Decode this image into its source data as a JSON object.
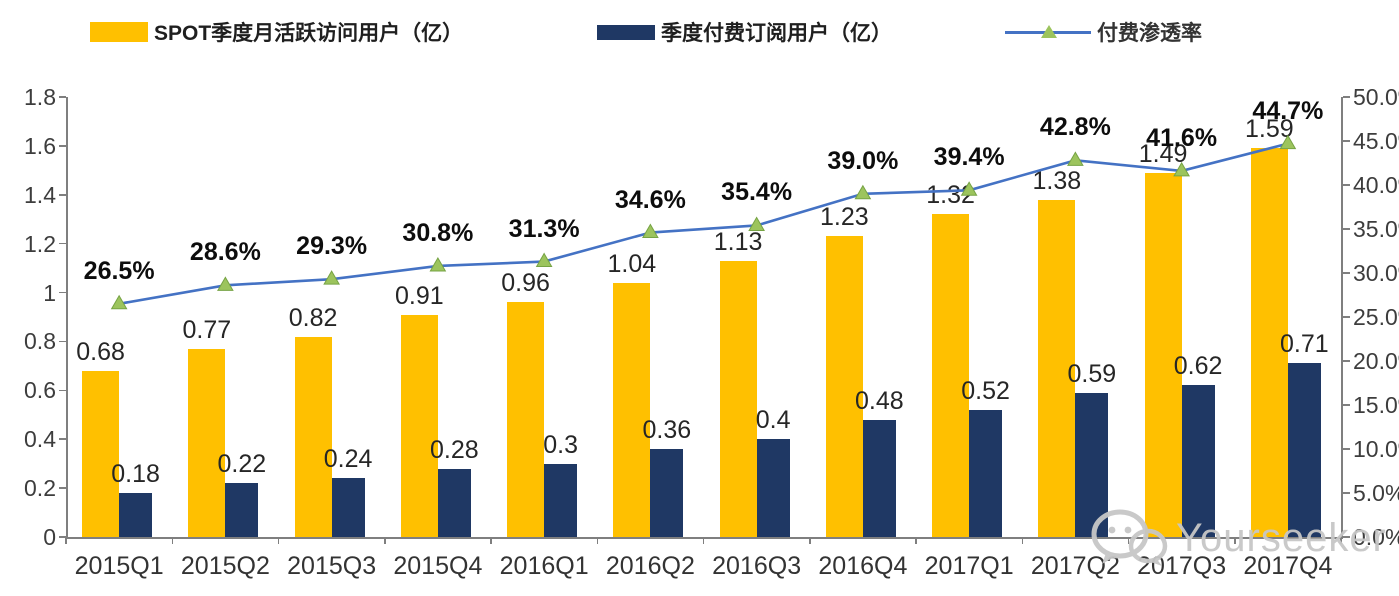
{
  "legend": {
    "items": [
      {
        "label": "SPOT季度月活跃访问用户（亿）",
        "swatch_color": "#FFC000",
        "type": "bar-swatch"
      },
      {
        "label": "季度付费订阅用户（亿）",
        "swatch_color": "#1F3864",
        "type": "bar-swatch"
      },
      {
        "label": "付费渗透率",
        "line_color": "#4472C4",
        "marker_color": "#9CC45D",
        "type": "line-marker"
      }
    ]
  },
  "chart_data": {
    "type": "bar",
    "subtype": "grouped-bars-with-line-overlay",
    "categories": [
      "2015Q1",
      "2015Q2",
      "2015Q3",
      "2015Q4",
      "2016Q1",
      "2016Q2",
      "2016Q3",
      "2016Q4",
      "2017Q1",
      "2017Q2",
      "2017Q3",
      "2017Q4"
    ],
    "series": [
      {
        "name": "SPOT季度月活跃访问用户（亿）",
        "type": "bar",
        "axis": "left",
        "color": "#FFC000",
        "values": [
          0.68,
          0.77,
          0.82,
          0.91,
          0.96,
          1.04,
          1.13,
          1.23,
          1.32,
          1.38,
          1.49,
          1.59
        ],
        "labels": [
          "0.68",
          "0.77",
          "0.82",
          "0.91",
          "0.96",
          "1.04",
          "1.13",
          "1.23",
          "1.32",
          "1.38",
          "1.49",
          "1.59"
        ]
      },
      {
        "name": "季度付费订阅用户（亿）",
        "type": "bar",
        "axis": "left",
        "color": "#1F3864",
        "values": [
          0.18,
          0.22,
          0.24,
          0.28,
          0.3,
          0.36,
          0.4,
          0.48,
          0.52,
          0.59,
          0.62,
          0.71
        ],
        "labels": [
          "0.18",
          "0.22",
          "0.24",
          "0.28",
          "0.3",
          "0.36",
          "0.4",
          "0.48",
          "0.52",
          "0.59",
          "0.62",
          "0.71"
        ]
      },
      {
        "name": "付费渗透率",
        "type": "line",
        "axis": "right",
        "color": "#4472C4",
        "marker": "triangle",
        "marker_color": "#9CC45D",
        "values": [
          26.5,
          28.6,
          29.3,
          30.8,
          31.3,
          34.6,
          35.4,
          39.0,
          39.4,
          42.8,
          41.6,
          44.7
        ],
        "labels": [
          "26.5%",
          "28.6%",
          "29.3%",
          "30.8%",
          "31.3%",
          "34.6%",
          "35.4%",
          "39.0%",
          "39.4%",
          "42.8%",
          "41.6%",
          "44.7%"
        ]
      }
    ],
    "axes": {
      "left": {
        "min": 0,
        "max": 1.8,
        "ticks": [
          "0",
          "0.2",
          "0.4",
          "0.6",
          "0.8",
          "1",
          "1.2",
          "1.4",
          "1.6",
          "1.8"
        ]
      },
      "right": {
        "min": 0,
        "max": 50,
        "ticks": [
          "0.0%",
          "5.0%",
          "10.0%",
          "15.0%",
          "20.0%",
          "25.0%",
          "30.0%",
          "35.0%",
          "40.0%",
          "45.0%",
          "50.0%"
        ]
      }
    },
    "grid": false,
    "legend_position": "top"
  },
  "watermark": {
    "text": "Yourseeker",
    "icon": "wechat-icon"
  }
}
